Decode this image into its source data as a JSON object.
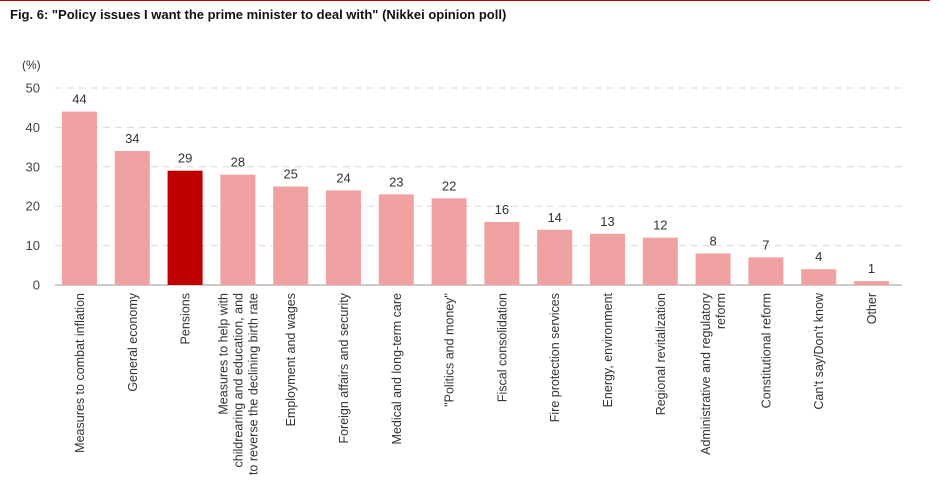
{
  "title": "Fig. 6: \"Policy issues I want the prime minister to deal with\" (Nikkei opinion poll)",
  "unit_label": "(%)",
  "colors": {
    "bar": "#f0a1a1",
    "highlight": "#c00000",
    "rule": "#c00000"
  },
  "chart_data": {
    "type": "bar",
    "title": "Fig. 6: \"Policy issues I want the prime minister to deal with\" (Nikkei opinion poll)",
    "ylabel": "(%)",
    "xlabel": "",
    "ylim": [
      0,
      50
    ],
    "yticks": [
      0,
      10,
      20,
      30,
      40,
      50
    ],
    "grid": true,
    "highlight_category": "Pensions",
    "categories": [
      [
        "Measures to combat inflation"
      ],
      [
        "General economy"
      ],
      [
        "Pensions"
      ],
      [
        "Measures to help with",
        "childrearing and education, and",
        "to reverse the declining birth rate"
      ],
      [
        "Employment and wages"
      ],
      [
        "Foreign affairs and security"
      ],
      [
        "Medical and long-term care"
      ],
      [
        "\"Politics and money\""
      ],
      [
        "Fiscal consolidation"
      ],
      [
        "Fire protection services"
      ],
      [
        "Energy, environment"
      ],
      [
        "Regional revitalization"
      ],
      [
        "Administrative and regulatory",
        "reform"
      ],
      [
        "Constitutional reform"
      ],
      [
        "Can't say/Don't know"
      ],
      [
        "Other"
      ]
    ],
    "values": [
      44,
      34,
      29,
      28,
      25,
      24,
      23,
      22,
      16,
      14,
      13,
      12,
      8,
      7,
      4,
      1
    ]
  }
}
